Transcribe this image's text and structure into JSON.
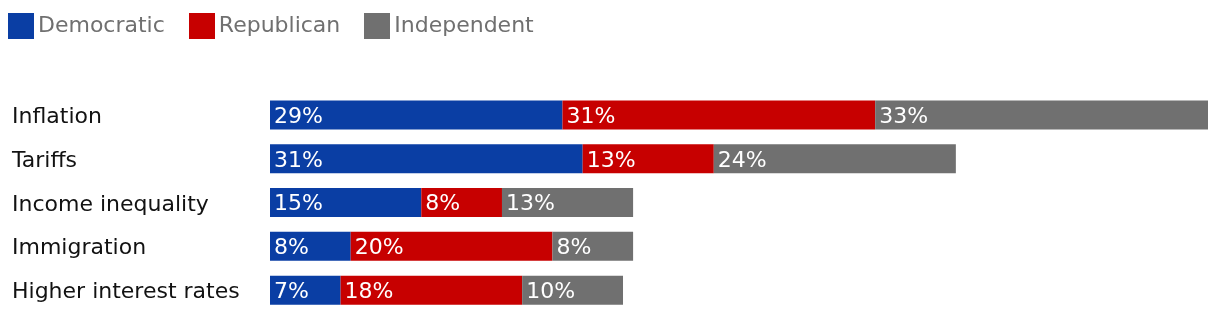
{
  "chart_data": {
    "type": "bar",
    "orientation": "horizontal",
    "stacked": true,
    "legend": "top left",
    "categories": [
      "Inflation",
      "Tariffs",
      "Income inequality",
      "Immigration",
      "Higher interest rates"
    ],
    "series": [
      {
        "name": "Democratic",
        "color": "#0a3ea4",
        "values": [
          29,
          31,
          15,
          8,
          7
        ],
        "value_labels": [
          "29%",
          "31%",
          "15%",
          "8%",
          "7%"
        ]
      },
      {
        "name": "Republican",
        "color": "#c70000",
        "values": [
          31,
          13,
          8,
          20,
          18
        ],
        "value_labels": [
          "31%",
          "13%",
          "8%",
          "20%",
          "18%"
        ]
      },
      {
        "name": "Independent",
        "color": "#707070",
        "values": [
          33,
          24,
          13,
          8,
          10
        ],
        "value_labels": [
          "33%",
          "24%",
          "13%",
          "8%",
          "10%"
        ]
      }
    ]
  }
}
